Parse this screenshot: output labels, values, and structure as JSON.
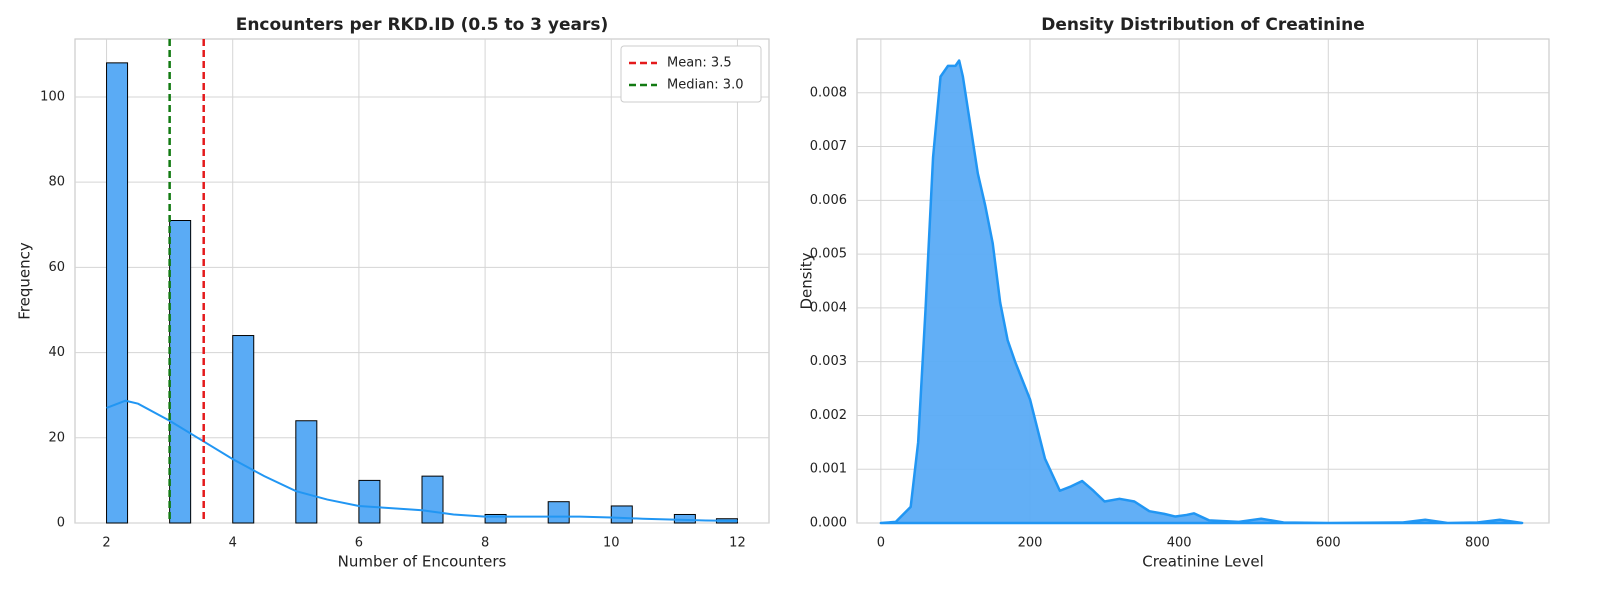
{
  "chart_data": [
    {
      "type": "histogram",
      "title": "Encounters per RKD.ID (0.5 to 3 years)",
      "xlabel": "Number of Encounters",
      "ylabel": "Frequency",
      "bins": [
        2,
        2.333,
        2.667,
        3,
        3.333,
        3.667,
        4,
        4.333,
        4.667,
        5,
        5.333,
        5.667,
        6,
        6.333,
        6.667,
        7,
        7.333,
        7.667,
        8,
        8.333,
        8.667,
        9,
        9.333,
        9.667,
        10,
        10.333,
        10.667,
        11,
        11.333,
        11.667,
        12
      ],
      "counts": [
        108,
        0,
        0,
        71,
        0,
        0,
        44,
        0,
        0,
        24,
        0,
        0,
        10,
        0,
        0,
        11,
        0,
        0,
        2,
        0,
        0,
        5,
        0,
        0,
        4,
        0,
        0,
        2,
        0,
        1
      ],
      "color": "#5aabf5",
      "edgecolor": "#000000",
      "kde": {
        "color": "#2196f3",
        "x": [
          2,
          2.3,
          2.5,
          3,
          3.5,
          4,
          4.5,
          5,
          5.5,
          6,
          6.5,
          7,
          7.5,
          8,
          8.5,
          9,
          9.5,
          10,
          10.5,
          11,
          11.5,
          12
        ],
        "values": [
          27,
          28.7,
          28,
          24,
          19.5,
          15,
          11,
          7.5,
          5.5,
          4,
          3.5,
          3,
          2,
          1.5,
          1.5,
          1.5,
          1.5,
          1.3,
          1,
          0.8,
          0.6,
          0.5
        ]
      },
      "lines": [
        {
          "name": "Mean: 3.5",
          "value": 3.54,
          "color": "#e41a1c"
        },
        {
          "name": "Median: 3.0",
          "value": 3.0,
          "color": "#127a12"
        }
      ],
      "legend": "upper right",
      "grid": true,
      "xlim": [
        1.5,
        12.5
      ],
      "ylim": [
        0,
        113.6
      ],
      "xticks": [
        2,
        4,
        6,
        8,
        10,
        12
      ],
      "yticks": [
        0,
        20,
        40,
        60,
        80,
        100
      ]
    },
    {
      "type": "area",
      "title": "Density Distribution of Creatinine",
      "xlabel": "Creatinine Level",
      "ylabel": "Density",
      "x": [
        0,
        20,
        40,
        50,
        60,
        70,
        80,
        90,
        100,
        105,
        110,
        120,
        130,
        140,
        150,
        160,
        170,
        180,
        200,
        220,
        240,
        255,
        270,
        285,
        300,
        320,
        340,
        360,
        380,
        395,
        410,
        420,
        440,
        480,
        510,
        540,
        600,
        700,
        730,
        760,
        800,
        830,
        860
      ],
      "values": [
        0,
        2e-05,
        0.0003,
        0.0015,
        0.004,
        0.0068,
        0.0083,
        0.0085,
        0.0085,
        0.0086,
        0.0083,
        0.0074,
        0.0065,
        0.0059,
        0.0052,
        0.0041,
        0.0034,
        0.003,
        0.0023,
        0.0012,
        0.0006,
        0.00068,
        0.00078,
        0.0006,
        0.0004,
        0.00045,
        0.0004,
        0.00022,
        0.00017,
        0.00012,
        0.00015,
        0.00018,
        5e-05,
        2e-05,
        8e-05,
        1e-05,
        0,
        1e-05,
        6e-05,
        0,
        1e-05,
        6e-05,
        0
      ],
      "color": "#5aabf5",
      "linecolor": "#2196f3",
      "grid": true,
      "xlim": [
        -32,
        896
      ],
      "ylim": [
        0,
        0.009
      ],
      "xticks": [
        0,
        200,
        400,
        600,
        800
      ],
      "yticks": [
        {
          "value": 0,
          "label": "0.000"
        },
        0.001,
        0.002,
        0.003,
        0.004,
        0.005,
        0.006,
        0.007,
        0.008
      ]
    }
  ]
}
